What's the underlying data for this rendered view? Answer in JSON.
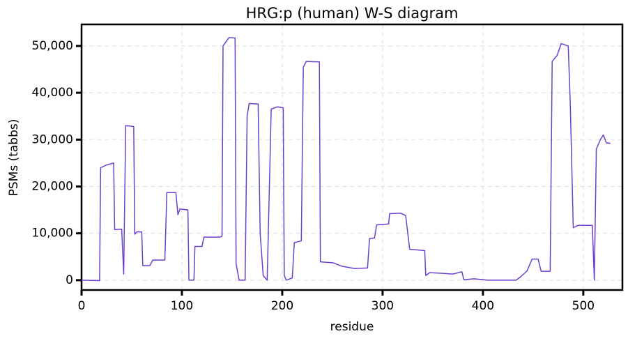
{
  "chart_data": {
    "type": "line",
    "title": "HRG:p (human) W-S diagram",
    "x_label": "residue",
    "y_label": "PSMs (tabbs)",
    "grid": true,
    "xlim": [
      0,
      539
    ],
    "ylim": [
      -2100,
      54600
    ],
    "xticks": [
      0,
      100,
      200,
      300,
      400,
      500
    ],
    "yticks": [
      0,
      {
        "value": 10000,
        "label": "10,000"
      },
      {
        "value": 20000,
        "label": "20,000"
      },
      {
        "value": 30000,
        "label": "30,000"
      },
      {
        "value": 40000,
        "label": "40,000"
      },
      {
        "value": 50000,
        "label": "50,000"
      }
    ],
    "x": [
      0,
      18,
      19,
      25,
      32,
      33,
      40,
      42,
      44,
      52,
      53,
      55,
      60,
      61,
      68,
      71,
      83,
      85,
      94,
      96,
      98,
      106,
      107,
      112,
      113,
      120,
      122,
      138,
      140,
      141,
      147,
      153,
      154,
      157,
      163,
      165,
      167,
      176,
      178,
      181,
      185,
      189,
      195,
      201,
      202,
      204,
      210,
      212,
      219,
      221,
      224,
      237,
      238,
      251,
      259,
      272,
      285,
      287,
      292,
      294,
      306,
      307,
      318,
      323,
      327,
      342,
      343,
      347,
      356,
      370,
      379,
      381,
      391,
      405,
      433,
      438,
      444,
      449,
      455,
      458,
      467,
      469,
      474,
      478,
      485,
      487,
      490,
      495,
      509,
      511,
      513,
      517,
      520,
      523,
      527
    ],
    "series": [
      {
        "name": "PSMs",
        "color": "#6a3fd0",
        "values": [
          0,
          -100,
          24000,
          24600,
          25000,
          10800,
          10900,
          1300,
          33000,
          32800,
          9800,
          10300,
          10300,
          3100,
          3100,
          4300,
          4300,
          18700,
          18700,
          14000,
          15200,
          15000,
          0,
          0,
          7200,
          7200,
          9200,
          9200,
          9400,
          50000,
          51800,
          51700,
          3500,
          0,
          0,
          35000,
          37700,
          37600,
          10000,
          1000,
          0,
          36500,
          37000,
          36800,
          1000,
          0,
          500,
          8000,
          8400,
          45500,
          46700,
          46600,
          3900,
          3700,
          3000,
          2500,
          2600,
          8900,
          9000,
          11800,
          12000,
          14200,
          14300,
          13800,
          6600,
          6300,
          1000,
          1600,
          1500,
          1300,
          1800,
          100,
          300,
          0,
          0,
          800,
          2000,
          4500,
          4500,
          1900,
          1900,
          46700,
          48000,
          50500,
          50000,
          38000,
          11200,
          11700,
          11700,
          0,
          28000,
          30000,
          31000,
          29300,
          29200
        ]
      }
    ]
  }
}
